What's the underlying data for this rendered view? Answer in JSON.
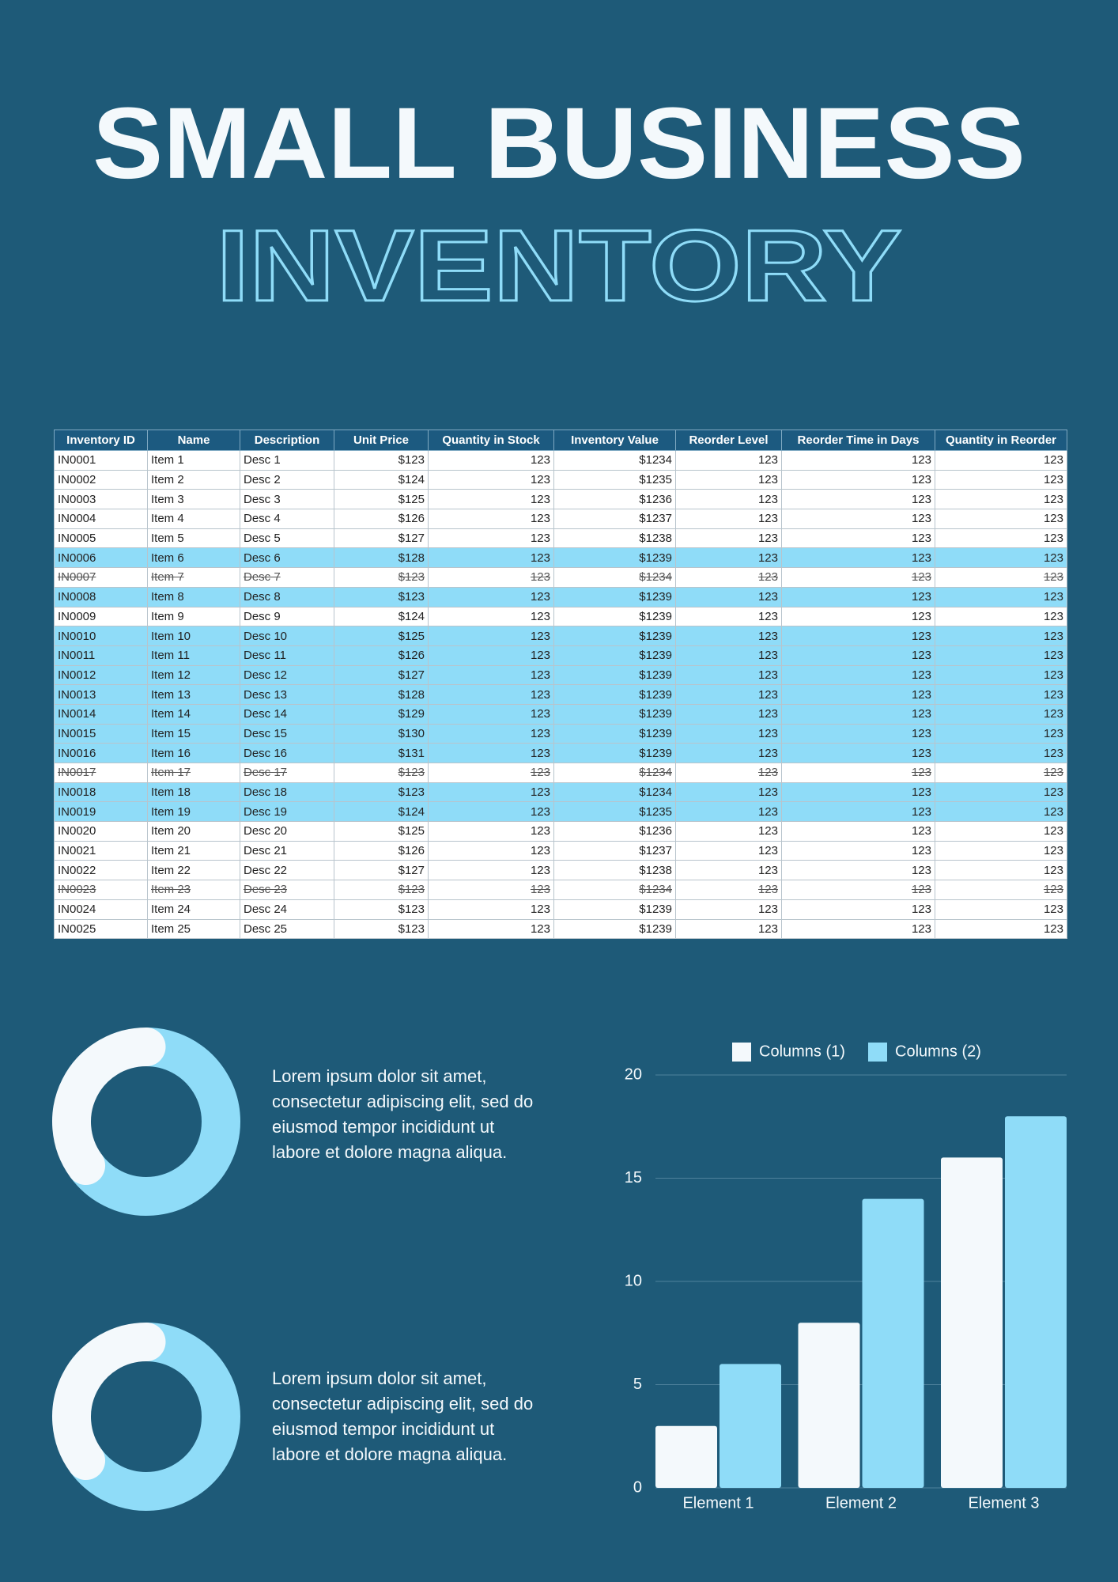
{
  "header": {
    "title": "SMALL BUSINESS",
    "subtitle": "INVENTORY"
  },
  "table": {
    "columns": [
      "Inventory ID",
      "Name",
      "Description",
      "Unit Price",
      "Quantity in Stock",
      "Inventory Value",
      "Reorder Level",
      "Reorder Time in Days",
      "Quantity in Reorder"
    ],
    "highlight_color": "#8fdcf8",
    "rows": [
      {
        "cells": [
          "IN0001",
          "Item 1",
          "Desc 1",
          "$123",
          "123",
          "$1234",
          "123",
          "123",
          "123"
        ]
      },
      {
        "cells": [
          "IN0002",
          "Item 2",
          "Desc 2",
          "$124",
          "123",
          "$1235",
          "123",
          "123",
          "123"
        ]
      },
      {
        "cells": [
          "IN0003",
          "Item 3",
          "Desc 3",
          "$125",
          "123",
          "$1236",
          "123",
          "123",
          "123"
        ]
      },
      {
        "cells": [
          "IN0004",
          "Item 4",
          "Desc 4",
          "$126",
          "123",
          "$1237",
          "123",
          "123",
          "123"
        ]
      },
      {
        "cells": [
          "IN0005",
          "Item 5",
          "Desc 5",
          "$127",
          "123",
          "$1238",
          "123",
          "123",
          "123"
        ]
      },
      {
        "cells": [
          "IN0006",
          "Item 6",
          "Desc 6",
          "$128",
          "123",
          "$1239",
          "123",
          "123",
          "123"
        ],
        "highlight": true
      },
      {
        "cells": [
          "IN0007",
          "Item 7",
          "Desc 7",
          "$123",
          "123",
          "$1234",
          "123",
          "123",
          "123"
        ],
        "strike": true
      },
      {
        "cells": [
          "IN0008",
          "Item 8",
          "Desc 8",
          "$123",
          "123",
          "$1239",
          "123",
          "123",
          "123"
        ],
        "highlight": true
      },
      {
        "cells": [
          "IN0009",
          "Item 9",
          "Desc 9",
          "$124",
          "123",
          "$1239",
          "123",
          "123",
          "123"
        ]
      },
      {
        "cells": [
          "IN0010",
          "Item 10",
          "Desc 10",
          "$125",
          "123",
          "$1239",
          "123",
          "123",
          "123"
        ],
        "highlight": true
      },
      {
        "cells": [
          "IN0011",
          "Item 11",
          "Desc 11",
          "$126",
          "123",
          "$1239",
          "123",
          "123",
          "123"
        ],
        "highlight": true
      },
      {
        "cells": [
          "IN0012",
          "Item 12",
          "Desc 12",
          "$127",
          "123",
          "$1239",
          "123",
          "123",
          "123"
        ],
        "highlight": true
      },
      {
        "cells": [
          "IN0013",
          "Item 13",
          "Desc 13",
          "$128",
          "123",
          "$1239",
          "123",
          "123",
          "123"
        ],
        "highlight": true
      },
      {
        "cells": [
          "IN0014",
          "Item 14",
          "Desc 14",
          "$129",
          "123",
          "$1239",
          "123",
          "123",
          "123"
        ],
        "highlight": true
      },
      {
        "cells": [
          "IN0015",
          "Item 15",
          "Desc 15",
          "$130",
          "123",
          "$1239",
          "123",
          "123",
          "123"
        ],
        "highlight": true
      },
      {
        "cells": [
          "IN0016",
          "Item 16",
          "Desc 16",
          "$131",
          "123",
          "$1239",
          "123",
          "123",
          "123"
        ],
        "highlight": true
      },
      {
        "cells": [
          "IN0017",
          "Item 17",
          "Desc 17",
          "$123",
          "123",
          "$1234",
          "123",
          "123",
          "123"
        ],
        "strike": true
      },
      {
        "cells": [
          "IN0018",
          "Item 18",
          "Desc 18",
          "$123",
          "123",
          "$1234",
          "123",
          "123",
          "123"
        ],
        "highlight": true
      },
      {
        "cells": [
          "IN0019",
          "Item 19",
          "Desc 19",
          "$124",
          "123",
          "$1235",
          "123",
          "123",
          "123"
        ],
        "highlight": true
      },
      {
        "cells": [
          "IN0020",
          "Item 20",
          "Desc 20",
          "$125",
          "123",
          "$1236",
          "123",
          "123",
          "123"
        ]
      },
      {
        "cells": [
          "IN0021",
          "Item 21",
          "Desc 21",
          "$126",
          "123",
          "$1237",
          "123",
          "123",
          "123"
        ]
      },
      {
        "cells": [
          "IN0022",
          "Item 22",
          "Desc 22",
          "$127",
          "123",
          "$1238",
          "123",
          "123",
          "123"
        ]
      },
      {
        "cells": [
          "IN0023",
          "Item 23",
          "Desc 23",
          "$123",
          "123",
          "$1234",
          "123",
          "123",
          "123"
        ],
        "strike": true
      },
      {
        "cells": [
          "IN0024",
          "Item 24",
          "Desc 24",
          "$123",
          "123",
          "$1239",
          "123",
          "123",
          "123"
        ]
      },
      {
        "cells": [
          "IN0025",
          "Item 25",
          "Desc 25",
          "$123",
          "123",
          "$1239",
          "123",
          "123",
          "123"
        ]
      }
    ]
  },
  "donuts": [
    {
      "values": [
        65,
        35
      ],
      "colors": [
        "#8fdcf8",
        "#f4f9fc"
      ],
      "text": [
        "Lorem ipsum dolor sit amet,",
        "consectetur adipiscing elit, sed do",
        "eiusmod tempor incididunt ut",
        "labore et dolore magna aliqua."
      ]
    },
    {
      "values": [
        65,
        35
      ],
      "colors": [
        "#8fdcf8",
        "#f4f9fc"
      ],
      "text": [
        "Lorem ipsum dolor sit amet,",
        "consectetur adipiscing elit, sed do",
        "eiusmod tempor incididunt ut",
        "labore et dolore magna aliqua."
      ]
    }
  ],
  "chart_data": {
    "type": "bar",
    "categories": [
      "Element 1",
      "Element 2",
      "Element 3"
    ],
    "series": [
      {
        "name": "Columns (1)",
        "color": "#f4f9fc",
        "values": [
          3,
          8,
          16
        ]
      },
      {
        "name": "Columns (2)",
        "color": "#8fdcf8",
        "values": [
          6,
          14,
          18
        ]
      }
    ],
    "ylim": [
      0,
      20
    ],
    "yticks": [
      0,
      5,
      10,
      15,
      20
    ],
    "grid": true,
    "legend": "top"
  }
}
